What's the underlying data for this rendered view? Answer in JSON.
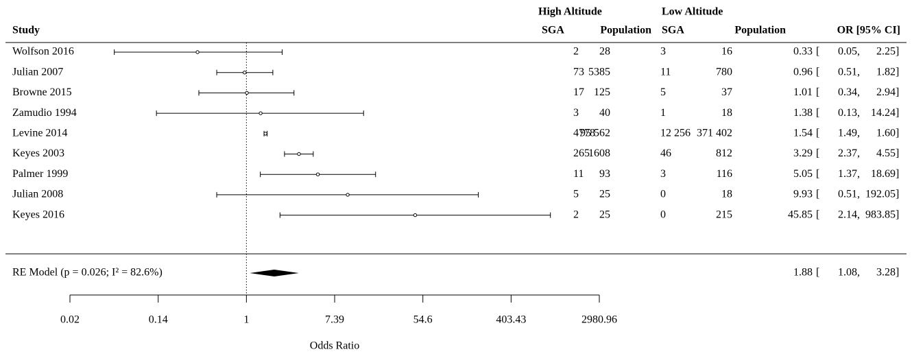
{
  "chart_data": {
    "type": "forest",
    "header": {
      "groups": [
        "High Altitude",
        "Low Altitude"
      ],
      "columns": [
        "Study",
        "SGA",
        "Population",
        "SGA",
        "Population",
        "OR [95% CI]"
      ]
    },
    "categories": [
      "Wolfson 2016",
      "Julian 2007",
      "Browne 2015",
      "Zamudio 1994",
      "Levine 2014",
      "Keyes 2003",
      "Palmer 1999",
      "Julian 2008",
      "Keyes 2016"
    ],
    "high_sga": [
      "2",
      "73",
      "17",
      "3",
      "4778",
      "265",
      "11",
      "5",
      "2"
    ],
    "high_population": [
      "28",
      "5385",
      "125",
      "40",
      "95 562",
      "1608",
      "93",
      "25",
      "25"
    ],
    "low_sga": [
      "3",
      "11",
      "5",
      "1",
      "12 256",
      "46",
      "3",
      "0",
      "0"
    ],
    "low_population": [
      "16",
      "780",
      "37",
      "18",
      "371 402",
      "812",
      "116",
      "18",
      "215"
    ],
    "values": [
      0.33,
      0.96,
      1.01,
      1.38,
      1.54,
      3.29,
      5.05,
      9.93,
      45.85
    ],
    "ci_lower": [
      0.05,
      0.51,
      0.34,
      0.13,
      1.49,
      2.37,
      1.37,
      0.51,
      2.14
    ],
    "ci_upper": [
      2.25,
      1.82,
      2.94,
      14.24,
      {
        "value": 1.6,
        "label": "1.60"
      },
      4.55,
      18.69,
      192.05,
      983.85
    ],
    "summary": {
      "label": "RE Model  (p = 0.026; I² = 82.6%)",
      "value": 1.88,
      "ci_lower": 1.08,
      "ci_upper": 3.28
    },
    "xlabel": "Odds Ratio",
    "log_scale": true,
    "reference_line": 1,
    "xlim": [
      0.0183,
      2980.958
    ],
    "xticks": [
      {
        "value": 0.0183,
        "label": "0.02"
      },
      {
        "value": 0.1353,
        "label": "0.14"
      },
      1,
      {
        "value": 7.389,
        "label": "7.39"
      },
      {
        "value": 54.598,
        "label": "54.6"
      },
      {
        "value": 403.429,
        "label": "403.43"
      },
      {
        "value": 2980.958,
        "label": "2980.96"
      }
    ],
    "color": "#000000"
  }
}
